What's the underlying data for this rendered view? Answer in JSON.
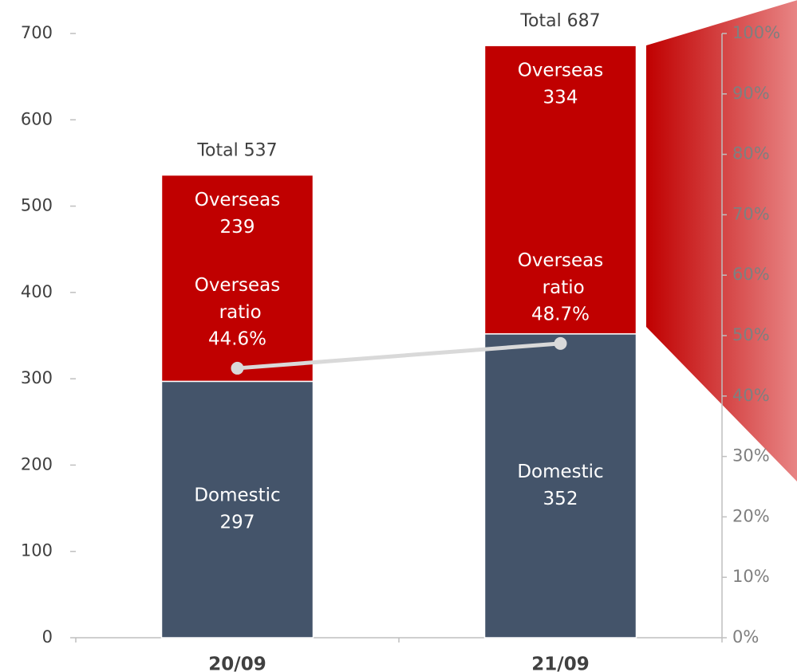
{
  "chart_data": {
    "type": "bar",
    "stacked": true,
    "categories": [
      "20/09",
      "21/09"
    ],
    "series": [
      {
        "name": "Domestic",
        "color": "#44546a",
        "values": [
          297,
          352
        ]
      },
      {
        "name": "Overseas",
        "color": "#c00000",
        "values": [
          239,
          334
        ]
      },
      {
        "name": "Overseas ratio",
        "type": "line",
        "axis": "y2",
        "color": "#d9d9d9",
        "values": [
          44.6,
          48.7
        ],
        "value_labels": [
          "44.6%",
          "48.7%"
        ]
      }
    ],
    "annotations": [
      "Total 537",
      "Total 687"
    ],
    "ylim": [
      0,
      700
    ],
    "yticks": [
      0,
      100,
      200,
      300,
      400,
      500,
      600,
      700
    ],
    "y2lim": [
      0,
      100
    ],
    "y2ticks": [
      {
        "value": 0,
        "label": "0%"
      },
      {
        "value": 10,
        "label": "10%"
      },
      {
        "value": 20,
        "label": "20%"
      },
      {
        "value": 30,
        "label": "30%"
      },
      {
        "value": 40,
        "label": "40%"
      },
      {
        "value": 50,
        "label": "50%"
      },
      {
        "value": 60,
        "label": "60%"
      },
      {
        "value": 70,
        "label": "70%"
      },
      {
        "value": 80,
        "label": "80%"
      },
      {
        "value": 90,
        "label": "90%"
      },
      {
        "value": 100,
        "label": "100%"
      }
    ]
  }
}
